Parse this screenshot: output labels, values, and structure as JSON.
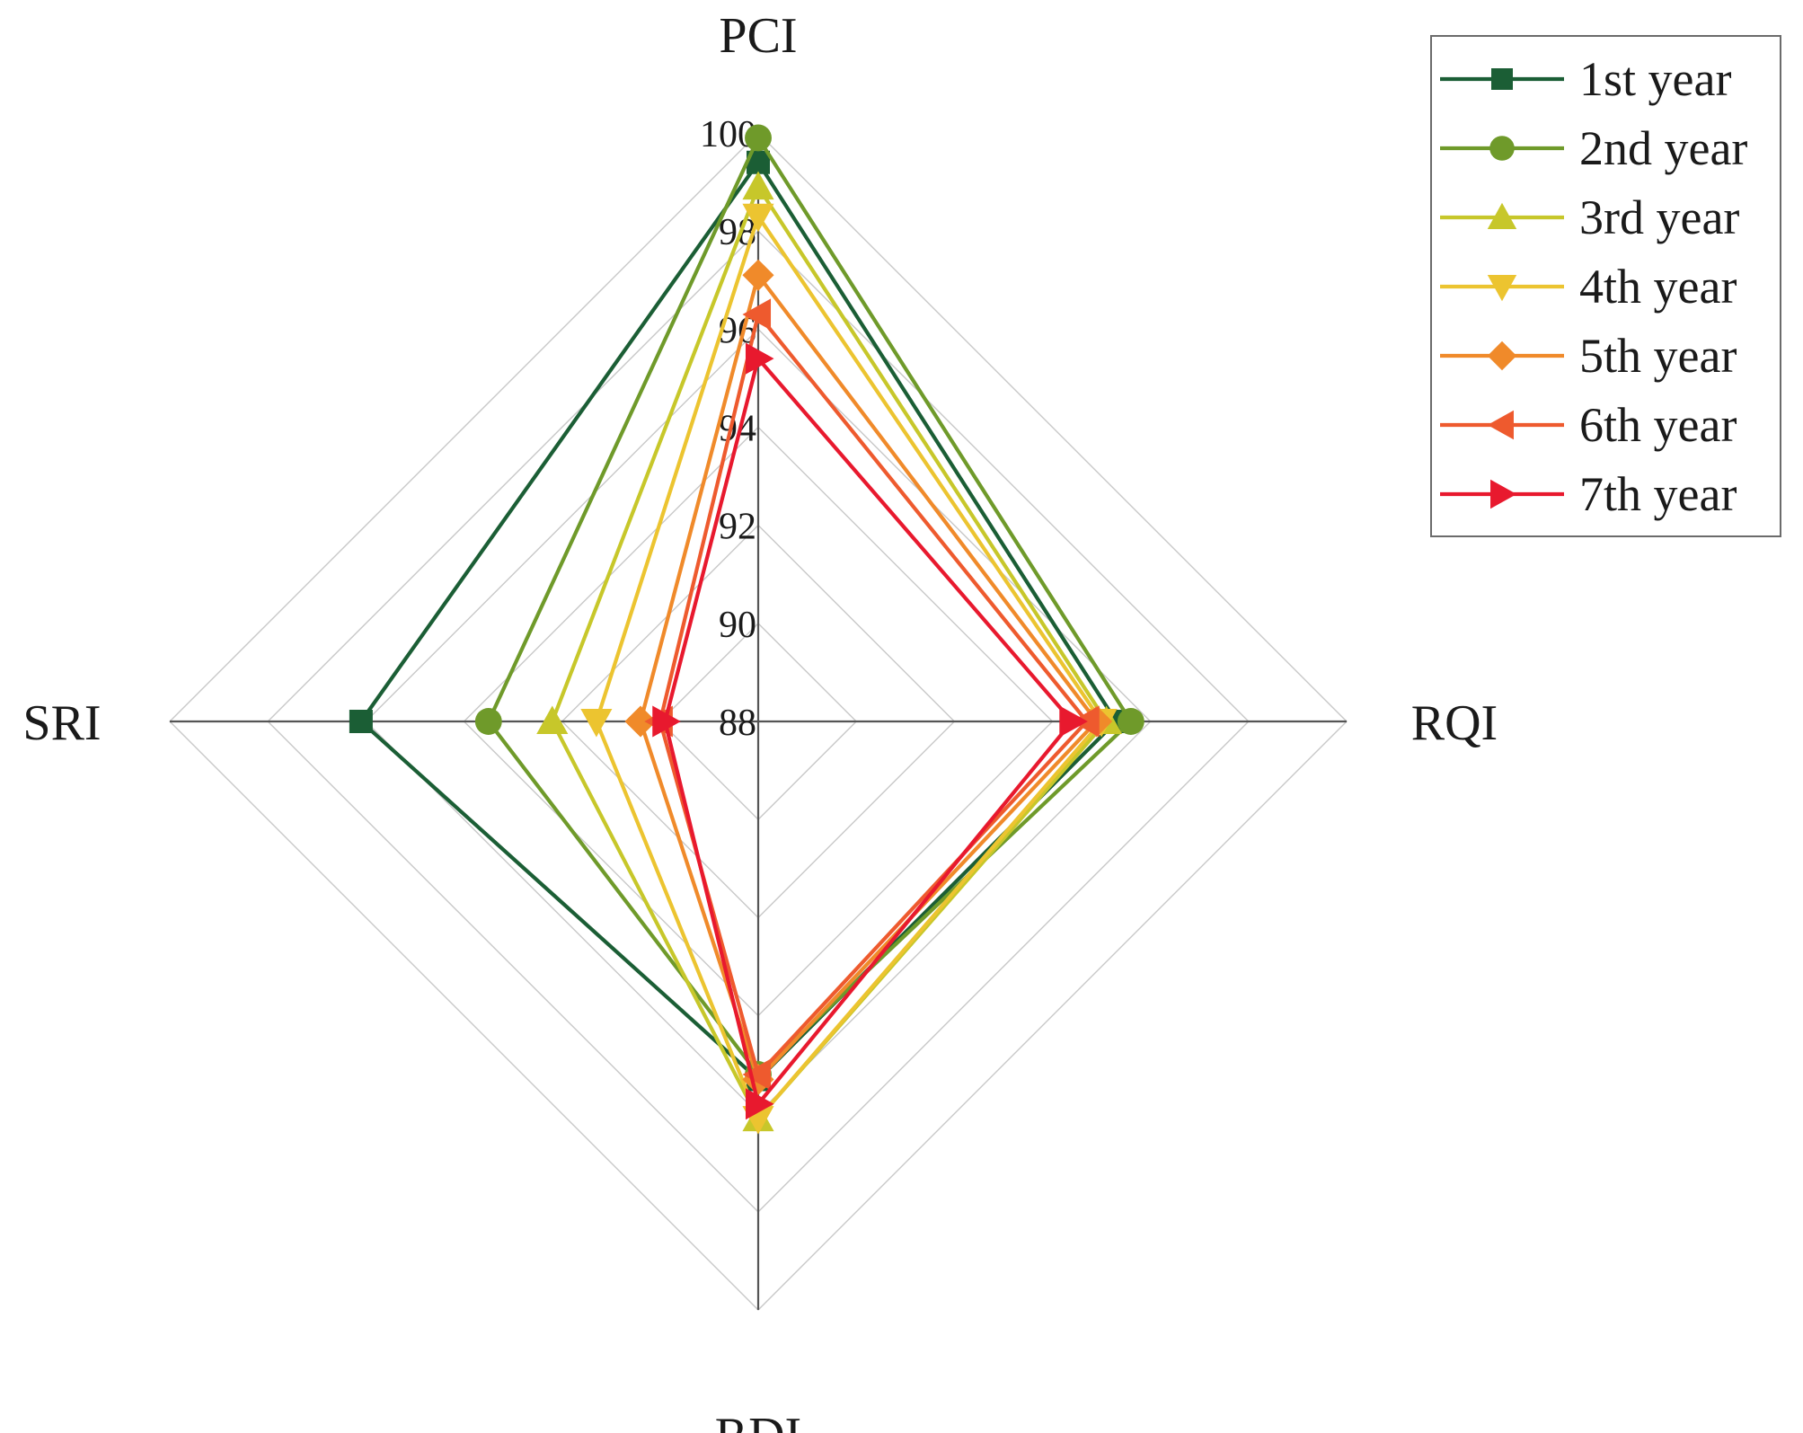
{
  "chart_data": {
    "type": "radar",
    "axes": [
      "PCI",
      "RQI",
      "RDI",
      "SRI"
    ],
    "range": [
      88,
      100
    ],
    "ticks": [
      88,
      90,
      92,
      94,
      96,
      98,
      100
    ],
    "tick_labels": [
      "88",
      "90",
      "92",
      "94",
      "96",
      "98",
      "100"
    ],
    "grid": true,
    "legend_position": "top-right",
    "series": [
      {
        "name": "1st year",
        "color": "#1b5e35",
        "marker": "square",
        "values": [
          99.4,
          95.3,
          95.3,
          96.1
        ]
      },
      {
        "name": "2nd year",
        "color": "#6f9a2a",
        "marker": "circle",
        "values": [
          99.9,
          95.6,
          95.2,
          93.5
        ]
      },
      {
        "name": "3rd year",
        "color": "#c7c72a",
        "marker": "triangle-up",
        "values": [
          98.9,
          95.1,
          96.1,
          92.2
        ]
      },
      {
        "name": "4th year",
        "color": "#ecc430",
        "marker": "triangle-down",
        "values": [
          98.3,
          95.0,
          96.1,
          91.3
        ]
      },
      {
        "name": "5th year",
        "color": "#f08a2a",
        "marker": "diamond",
        "values": [
          97.1,
          94.9,
          95.3,
          90.4
        ]
      },
      {
        "name": "6th year",
        "color": "#ee5a2e",
        "marker": "triangle-left",
        "values": [
          96.3,
          94.7,
          95.2,
          90.0
        ]
      },
      {
        "name": "7th year",
        "color": "#e8192e",
        "marker": "triangle-right",
        "values": [
          95.4,
          94.4,
          95.8,
          89.9
        ]
      }
    ]
  }
}
